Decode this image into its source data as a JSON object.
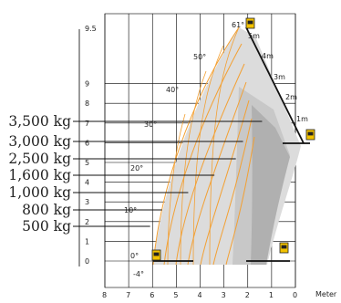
{
  "chart_data": {
    "type": "diagram",
    "xlabel": "Meter",
    "x_ticks": [
      "8",
      "7",
      "6",
      "5",
      "4",
      "3",
      "2",
      "1",
      "0"
    ],
    "y_ticks": [
      "9.5",
      "9",
      "8",
      "7",
      "6",
      "5",
      "4",
      "3",
      "2",
      "1",
      "0"
    ],
    "loads": [
      {
        "label": "3,500 kg",
        "reach_m": 1.4
      },
      {
        "label": "3,000 kg",
        "reach_m": 2.2
      },
      {
        "label": "2,500 kg",
        "reach_m": 2.5
      },
      {
        "label": "1,600 kg",
        "reach_m": 3.4
      },
      {
        "label": "1,000 kg",
        "reach_m": 4.5
      },
      {
        "label": "800 kg",
        "reach_m": 5.6
      },
      {
        "label": "500 kg",
        "reach_m": 6.1
      }
    ],
    "angles": [
      "61°",
      "50°",
      "40°",
      "30°",
      "20°",
      "10°",
      "0°",
      "-4°"
    ],
    "extensions": [
      "5m",
      "4m",
      "3m",
      "2m",
      "1m"
    ],
    "colors": {
      "envelope": "#f3a033",
      "shade_light": "#d9d9d9",
      "shade_mid": "#c3c3c3",
      "shade_dark": "#a9a9a9",
      "machine": "#f2c200"
    }
  }
}
